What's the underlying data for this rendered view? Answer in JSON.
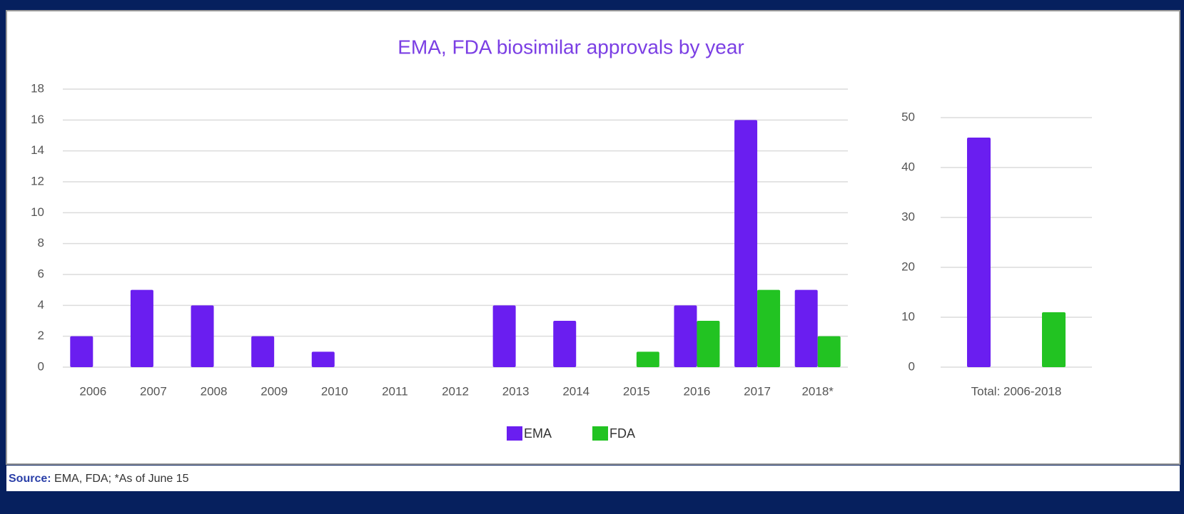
{
  "chart_data": [
    {
      "type": "bar",
      "title": "EMA, FDA biosimilar approvals by year",
      "categories": [
        "2006",
        "2007",
        "2008",
        "2009",
        "2010",
        "2011",
        "2012",
        "2013",
        "2014",
        "2015",
        "2016",
        "2017",
        "2018*"
      ],
      "series": [
        {
          "name": "EMA",
          "color": "#6a1ef0",
          "values": [
            2,
            5,
            4,
            2,
            1,
            0,
            0,
            4,
            3,
            0,
            4,
            16,
            5
          ]
        },
        {
          "name": "FDA",
          "color": "#22c322",
          "values": [
            0,
            0,
            0,
            0,
            0,
            0,
            0,
            0,
            0,
            1,
            3,
            5,
            2
          ]
        }
      ],
      "ylim": [
        0,
        18
      ],
      "yticks": [
        0,
        2,
        4,
        6,
        8,
        10,
        12,
        14,
        16,
        18
      ],
      "grid": true,
      "legend": "bottom"
    },
    {
      "type": "bar",
      "categories": [
        "Total: 2006-2018"
      ],
      "series": [
        {
          "color": "#6a1ef0",
          "values": [
            46
          ]
        },
        {
          "color": "#22c322",
          "values": [
            11
          ]
        }
      ],
      "ylim": [
        0,
        50
      ],
      "yticks": [
        0,
        10,
        20,
        30,
        40,
        50
      ],
      "grid": true
    }
  ],
  "source": {
    "label": "Source:",
    "text": "EMA, FDA; *As of June 15"
  }
}
